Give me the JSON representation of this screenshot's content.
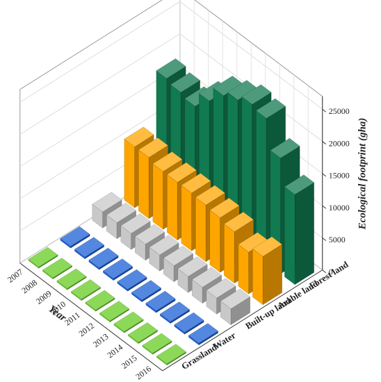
{
  "chart_data": {
    "type": "bar3d",
    "x_label": "Year",
    "z_label": "Ecological footprint (gha)",
    "categories": [
      "2007",
      "2008",
      "2009",
      "2010",
      "2011",
      "2012",
      "2013",
      "2014",
      "2015",
      "2016"
    ],
    "series": [
      {
        "name": "Grassland",
        "color": "#66cc22",
        "values": [
          200,
          200,
          200,
          200,
          200,
          200,
          200,
          200,
          200,
          200
        ]
      },
      {
        "name": "Water",
        "color": "#1a5fd6",
        "values": [
          300,
          300,
          300,
          300,
          300,
          300,
          300,
          300,
          300,
          300
        ]
      },
      {
        "name": "Built-up land",
        "color": "#c8c8c8",
        "values": [
          2500,
          2500,
          2500,
          2500,
          2500,
          2500,
          2500,
          2500,
          2500,
          2500
        ]
      },
      {
        "name": "Arable land",
        "color": "#ffa500",
        "values": [
          9500,
          9500,
          9000,
          9000,
          9000,
          8800,
          8500,
          8000,
          6500,
          7500
        ]
      },
      {
        "name": "Forest land",
        "color": "#117a50",
        "values": [
          17000,
          16500,
          16000,
          18500,
          21000,
          22000,
          23000,
          22500,
          18000,
          14000
        ]
      }
    ],
    "zlim": [
      0,
      27000
    ],
    "zticks": [
      0,
      5000,
      10000,
      15000,
      20000,
      25000
    ],
    "grid": true
  }
}
